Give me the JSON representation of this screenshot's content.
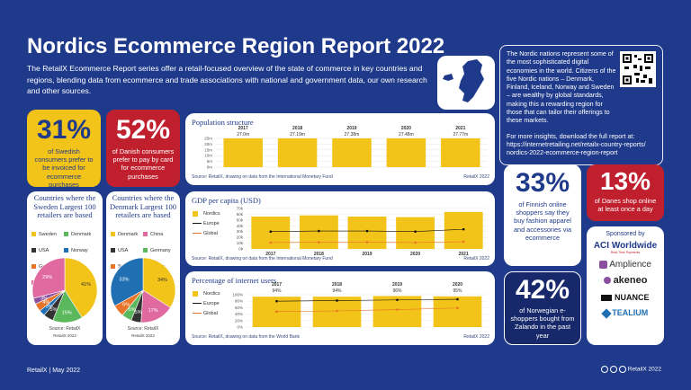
{
  "title": "Nordics Ecommerce Region Report 2022",
  "intro": "The RetailX Ecommerce Report series offer a retail-focused overview of the state of commerce in key countries and regions, blending data from ecommerce and trade associations with national and government data, our own research and other sources.",
  "sidebox": {
    "p1": "The Nordic nations represent some of the most sophisticated digital economies in the world. Citizens of the five Nordic nations – Denmark, Finland, Iceland, Norway and Sweden – are wealthy by global standards, making this a rewarding region for those that can tailor their offerings to these markets.",
    "p2": "For more insights, download the full report at: https://internetretailing.net/retailx-country-reports/ nordics-2022-ecommerce-region-report"
  },
  "stats": {
    "s31": {
      "value": "31%",
      "text": "of Swedish consumers prefer to be invoiced for ecommerce purchases"
    },
    "s52": {
      "value": "52%",
      "text": "of Danish consumers prefer to pay by card for ecommerce purchases"
    },
    "s33": {
      "value": "33%",
      "text": "of Finnish online shoppers say they buy fashion apparel and accessories via ecommerce"
    },
    "s13": {
      "value": "13%",
      "text": "of Danes shop online at least once a day"
    },
    "s42": {
      "value": "42%",
      "text": "of Norwegian e-shoppers bought from Zalando in the past year"
    }
  },
  "pies": {
    "sweden": {
      "title": "Countries where the Sweden Largest 100 retailers are based",
      "legend": [
        "Sweden",
        "Denmark",
        "USA",
        "Norway",
        "Germany",
        "Others",
        "China"
      ],
      "source": "Source: RetailX",
      "copyright": "RetailX 2022",
      "values": [
        41,
        15,
        5,
        3,
        4,
        3,
        29
      ],
      "labels": [
        "41%",
        "15%",
        "5%",
        "3%",
        "4%",
        "3%",
        "29%"
      ]
    },
    "denmark": {
      "title": "Countries where the Denmark Largest 100 retailers are based",
      "legend": [
        "Denmark",
        "China",
        "USA",
        "Germany",
        "Sweden",
        "Others"
      ],
      "source": "Source: RetailX",
      "copyright": "RetailX 2022",
      "values": [
        34,
        17,
        5,
        5,
        6,
        33
      ],
      "labels": [
        "34%",
        "17%",
        "5%",
        "5%",
        "6%",
        "33%"
      ]
    }
  },
  "population": {
    "title": "Population structure",
    "source": "Source: RetailX, drawing on data from the International Monetary Fund",
    "copyright": "RetailX 2022",
    "years": [
      "2017",
      "2018",
      "2019",
      "2020",
      "2021"
    ],
    "values_label": [
      "27.0m",
      "27.19m",
      "27.38m",
      "27.48m",
      "27.77m"
    ],
    "yticks": [
      "25m",
      "20m",
      "15m",
      "10m",
      "5m",
      "0m"
    ]
  },
  "gdp": {
    "title": "GDP per capita (USD)",
    "source": "Source: RetailX, drawing on data from the International Monetary Fund",
    "copyright": "RetailX 2022",
    "legend": [
      "Nordics",
      "Europe",
      "Global"
    ],
    "years": [
      "2017",
      "2018",
      "2019",
      "2020",
      "2021"
    ],
    "yticks": [
      "70k",
      "60k",
      "50k",
      "40k",
      "30k",
      "20k",
      "10k",
      "0k"
    ]
  },
  "internet": {
    "title": "Percentage of internet users",
    "source": "Source: RetailX, drawing on data from the World Bank",
    "copyright": "RetailX 2022",
    "legend": [
      "Nordics",
      "Europe",
      "Global"
    ],
    "years": [
      "2017",
      "2018",
      "2019",
      "2020"
    ],
    "values_label": [
      "94%",
      "94%",
      "96%",
      "95%"
    ],
    "yticks": [
      "100%",
      "80%",
      "60%",
      "40%",
      "20%",
      "0%"
    ]
  },
  "sponsors": {
    "title": "Sponsored by",
    "names": [
      "ACI Worldwide",
      "Amplience",
      "akeneo",
      "NUANCE",
      "TEALIUM"
    ],
    "aci_tag": "Real-Time Payments"
  },
  "footer": {
    "left": "RetailX | May 2022",
    "right": "RetailX 2022"
  },
  "chart_data": [
    {
      "type": "bar",
      "title": "Population structure",
      "categories": [
        "2017",
        "2018",
        "2019",
        "2020",
        "2021"
      ],
      "values": [
        27.0,
        27.19,
        27.38,
        27.48,
        27.77
      ],
      "ylim": [
        0,
        25
      ]
    },
    {
      "type": "bar",
      "title": "GDP per capita (USD)",
      "categories": [
        "2017",
        "2018",
        "2019",
        "2020",
        "2021"
      ],
      "series": [
        {
          "name": "Nordics",
          "values": [
            56000,
            58000,
            56000,
            55000,
            64000
          ]
        },
        {
          "name": "Europe",
          "values": [
            30000,
            31000,
            31000,
            30000,
            34000
          ]
        },
        {
          "name": "Global",
          "values": [
            11000,
            11500,
            11500,
            11000,
            12500
          ]
        }
      ],
      "ylim": [
        0,
        70000
      ]
    },
    {
      "type": "bar",
      "title": "Percentage of internet users",
      "categories": [
        "2017",
        "2018",
        "2019",
        "2020"
      ],
      "series": [
        {
          "name": "Nordics",
          "values": [
            94,
            94,
            96,
            95
          ]
        },
        {
          "name": "Europe",
          "values": [
            80,
            82,
            84,
            86
          ]
        },
        {
          "name": "Global",
          "values": [
            48,
            50,
            54,
            59
          ]
        }
      ],
      "ylim": [
        0,
        100
      ]
    },
    {
      "type": "pie",
      "title": "Countries where the Sweden Largest 100 retailers are based",
      "categories": [
        "Sweden",
        "Denmark",
        "USA",
        "Norway",
        "Germany",
        "Others",
        "China"
      ],
      "values": [
        41,
        15,
        5,
        3,
        4,
        3,
        29
      ]
    },
    {
      "type": "pie",
      "title": "Countries where the Denmark Largest 100 retailers are based",
      "categories": [
        "Denmark",
        "China",
        "USA",
        "Germany",
        "Sweden",
        "Others"
      ],
      "values": [
        34,
        17,
        5,
        5,
        6,
        33
      ]
    }
  ],
  "colors": {
    "navy": "#1f3a8a",
    "yellow": "#f2c318",
    "red": "#c0202e",
    "dark": "#333333",
    "orange": "#e8742a",
    "green": "#5cb85c",
    "blue": "#1f6fb2",
    "purple": "#8b4fa0",
    "pink": "#e06aa0"
  }
}
